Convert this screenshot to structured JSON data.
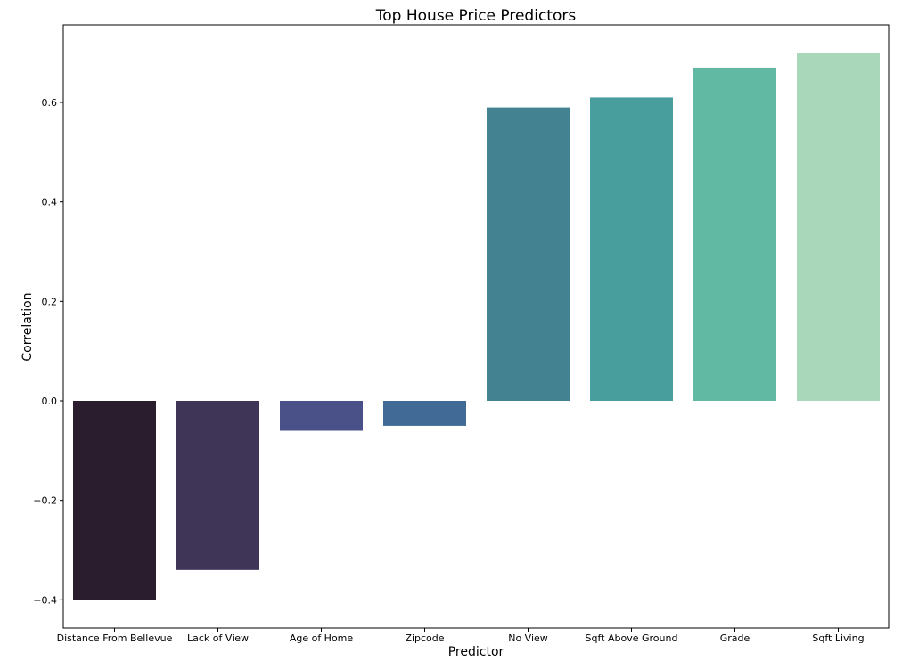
{
  "chart_data": {
    "type": "bar",
    "title": "Top House Price Predictors",
    "xlabel": "Predictor",
    "ylabel": "Correlation",
    "categories": [
      "Distance From Bellevue",
      "Lack of View",
      "Age of Home",
      "Zipcode",
      "No View",
      "Sqft Above Ground",
      "Grade",
      "Sqft Living"
    ],
    "values": [
      -0.4,
      -0.34,
      -0.06,
      -0.05,
      0.59,
      0.61,
      0.67,
      0.7
    ],
    "colors": [
      "#2a1d2e",
      "#3f3557",
      "#4a5189",
      "#416b96",
      "#438391",
      "#489d9d",
      "#62b9a3",
      "#a8d8b9"
    ],
    "ylim": [
      -0.45,
      0.75
    ],
    "yticks": [
      -0.4,
      -0.2,
      0.0,
      0.2,
      0.4,
      0.6
    ],
    "ytick_labels": [
      "−0.4",
      "−0.2",
      "0.0",
      "0.2",
      "0.4",
      "0.6"
    ],
    "grid": false,
    "legend": "none"
  }
}
